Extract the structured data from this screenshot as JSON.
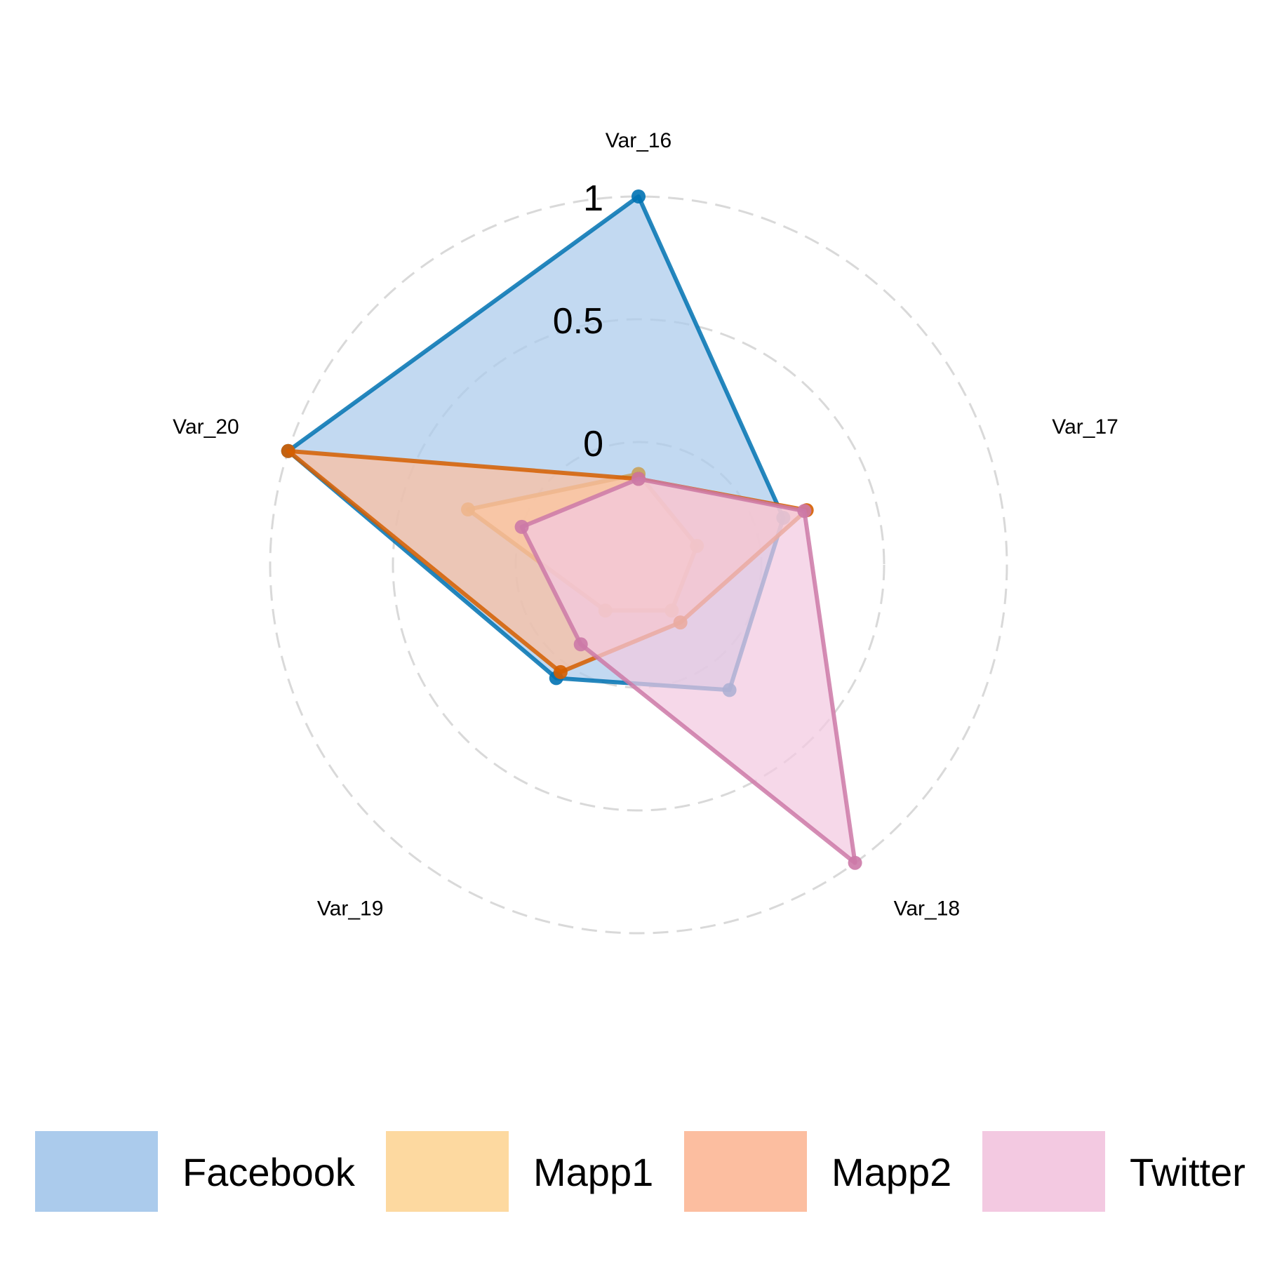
{
  "chart_data": {
    "type": "radar",
    "axes": [
      "Var_16",
      "Var_17",
      "Var_18",
      "Var_19",
      "Var_20"
    ],
    "range": [
      -0.5,
      1
    ],
    "gridlines": [
      0,
      0.5,
      1
    ],
    "tick_labels": [
      "0",
      "0.5",
      "1"
    ],
    "grid": "dashed circles",
    "legend_position": "bottom",
    "series": [
      {
        "name": "Facebook",
        "values": [
          1.0,
          0.12,
          0.13,
          0.07,
          1.0
        ],
        "color": "#0072B2",
        "fill": "#ABCBEC"
      },
      {
        "name": "Mapp1",
        "values": [
          -0.13,
          -0.25,
          -0.27,
          -0.27,
          0.23
        ],
        "color": "#C9A15A",
        "fill": "#FDD9A0"
      },
      {
        "name": "Mapp2",
        "values": [
          -0.15,
          0.22,
          -0.21,
          0.04,
          1.0
        ],
        "color": "#D55E00",
        "fill": "#FCBEA0"
      },
      {
        "name": "Twitter",
        "values": [
          -0.15,
          0.21,
          1.0,
          -0.1,
          0.0
        ],
        "color": "#CC79A7",
        "fill": "#F3C9E1"
      }
    ],
    "legend": [
      "Facebook",
      "Mapp1",
      "Mapp2",
      "Twitter"
    ]
  }
}
